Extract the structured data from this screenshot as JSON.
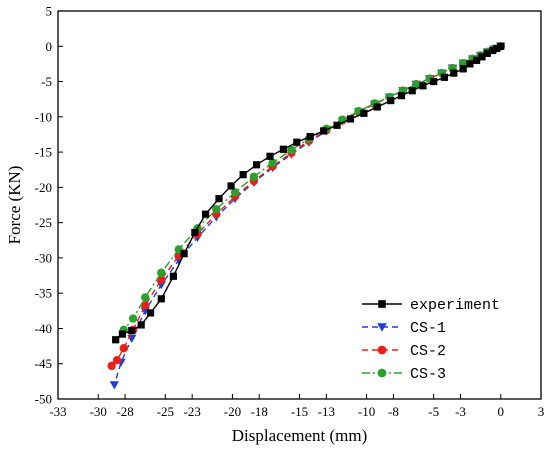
{
  "chart_data": {
    "type": "line",
    "title": "",
    "xlabel": "Displacement (mm)",
    "ylabel": "Force (KN)",
    "xlim": [
      -33,
      3
    ],
    "ylim": [
      -50,
      5
    ],
    "xticks": [
      -33,
      -30,
      -28,
      -25,
      -23,
      -20,
      -18,
      -15,
      -13,
      -10,
      -8,
      -5,
      -3,
      0,
      3
    ],
    "yticks": [
      5,
      0,
      -5,
      -10,
      -15,
      -20,
      -25,
      -30,
      -35,
      -40,
      -45,
      -50
    ],
    "legend_position": "bottom-right",
    "series": [
      {
        "name": "experiment",
        "color": "#000000",
        "marker": "square",
        "line": "solid",
        "x": [
          0,
          -0.3,
          -0.6,
          -1,
          -1.4,
          -1.8,
          -2.3,
          -2.8,
          -3.5,
          -4.2,
          -5,
          -5.8,
          -6.6,
          -7.4,
          -8.2,
          -9.2,
          -10.2,
          -11.2,
          -12.2,
          -13.2,
          -14.2,
          -15.2,
          -16.2,
          -17.2,
          -18.2,
          -19.2,
          -20.1,
          -21,
          -22,
          -22.8,
          -23.6,
          -24.4,
          -25.3,
          -26.1,
          -26.8,
          -27.5,
          -28.2,
          -28.7
        ],
        "y": [
          0,
          -0.3,
          -0.6,
          -1,
          -1.5,
          -2,
          -2.5,
          -3.2,
          -3.8,
          -4.4,
          -5,
          -5.6,
          -6.3,
          -7,
          -7.7,
          -8.6,
          -9.5,
          -10.3,
          -11.2,
          -12,
          -12.8,
          -13.6,
          -14.6,
          -15.6,
          -16.8,
          -18.2,
          -19.8,
          -21.6,
          -23.8,
          -26.4,
          -29.4,
          -32.6,
          -35.8,
          -37.8,
          -39.5,
          -40.3,
          -40.8,
          -41.6
        ]
      },
      {
        "name": "CS-1",
        "color": "#1f3fd4",
        "marker": "triangle-down",
        "line": "dash",
        "x": [
          0,
          -0.5,
          -1,
          -1.5,
          -2.1,
          -2.8,
          -3.6,
          -4.4,
          -5.3,
          -6.3,
          -7.3,
          -8.3,
          -9.4,
          -10.6,
          -11.8,
          -13,
          -14.3,
          -15.6,
          -17,
          -18.4,
          -19.8,
          -21.2,
          -22.6,
          -24,
          -25.3,
          -26.5,
          -27.5,
          -28.3,
          -28.8
        ],
        "y": [
          0,
          -0.4,
          -0.8,
          -1.3,
          -1.8,
          -2.4,
          -3.1,
          -3.8,
          -4.6,
          -5.4,
          -6.3,
          -7.2,
          -8.2,
          -9.3,
          -10.6,
          -12,
          -13.6,
          -15.3,
          -17.2,
          -19.3,
          -21.6,
          -24.2,
          -27.1,
          -30.3,
          -33.8,
          -37.5,
          -41.4,
          -44.8,
          -48
        ]
      },
      {
        "name": "CS-2",
        "color": "#e8201a",
        "marker": "circle",
        "line": "dash",
        "x": [
          0,
          -0.5,
          -1,
          -1.5,
          -2.1,
          -2.8,
          -3.6,
          -4.4,
          -5.3,
          -6.3,
          -7.3,
          -8.3,
          -9.4,
          -10.6,
          -11.8,
          -13,
          -14.3,
          -15.6,
          -17,
          -18.4,
          -19.8,
          -21.2,
          -22.6,
          -24,
          -25.3,
          -26.5,
          -27.4,
          -28.1,
          -28.6,
          -29
        ],
        "y": [
          0,
          -0.4,
          -0.8,
          -1.3,
          -1.8,
          -2.4,
          -3.1,
          -3.8,
          -4.6,
          -5.4,
          -6.3,
          -7.2,
          -8.2,
          -9.3,
          -10.5,
          -11.9,
          -13.4,
          -15.1,
          -17,
          -19.1,
          -21.3,
          -23.8,
          -26.6,
          -29.7,
          -33.1,
          -36.7,
          -40.2,
          -42.8,
          -44.5,
          -45.3
        ]
      },
      {
        "name": "CS-3",
        "color": "#2aa12a",
        "marker": "circle",
        "line": "dashdot",
        "x": [
          0,
          -0.5,
          -1,
          -1.5,
          -2.1,
          -2.8,
          -3.6,
          -4.4,
          -5.3,
          -6.3,
          -7.3,
          -8.3,
          -9.4,
          -10.6,
          -11.8,
          -13,
          -14.3,
          -15.6,
          -17,
          -18.4,
          -19.8,
          -21.2,
          -22.6,
          -24,
          -25.3,
          -26.5,
          -27.4,
          -28.1
        ],
        "y": [
          0,
          -0.4,
          -0.8,
          -1.3,
          -1.8,
          -2.4,
          -3.1,
          -3.8,
          -4.6,
          -5.4,
          -6.3,
          -7.2,
          -8.1,
          -9.2,
          -10.4,
          -11.7,
          -13.1,
          -14.7,
          -16.5,
          -18.5,
          -20.7,
          -23.1,
          -25.8,
          -28.8,
          -32.1,
          -35.6,
          -38.6,
          -40.2
        ]
      }
    ]
  }
}
